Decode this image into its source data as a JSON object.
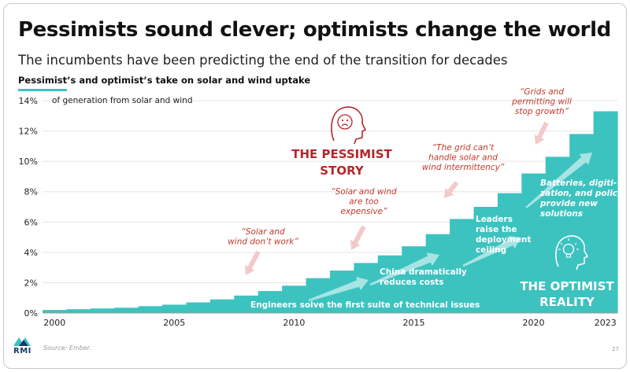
{
  "slide": {
    "title": "Pessimists sound clever; optimists change the world",
    "subtitle": "The incumbents have been predicting the end of the transition for decades",
    "chart_heading": "Pessimist’s and optimist’s take on solar and wind uptake",
    "source": "Source: Ember.",
    "page_number": "27",
    "logo_text": "RMI"
  },
  "colors": {
    "teal": "#3cc3c0",
    "teal_light": "#7fd8d5",
    "pessimist_red": "#b5262b",
    "quote_red": "#c0392b",
    "pink_arrow": "#f3c9c9",
    "white": "#ffffff"
  },
  "chart_data": {
    "type": "bar",
    "ylabel": "of generation from solar and wind",
    "ylim": [
      0,
      14
    ],
    "yticks": [
      "0%",
      "2%",
      "4%",
      "6%",
      "8%",
      "10%",
      "12%",
      "14%"
    ],
    "xticks": [
      "2000",
      "2005",
      "2010",
      "2015",
      "2020",
      "2023"
    ],
    "categories": [
      "2000",
      "2001",
      "2002",
      "2003",
      "2004",
      "2005",
      "2006",
      "2007",
      "2008",
      "2009",
      "2010",
      "2011",
      "2012",
      "2013",
      "2014",
      "2015",
      "2016",
      "2017",
      "2018",
      "2019",
      "2020",
      "2021",
      "2022",
      "2023"
    ],
    "values": [
      0.2,
      0.25,
      0.3,
      0.35,
      0.45,
      0.55,
      0.7,
      0.9,
      1.15,
      1.45,
      1.8,
      2.3,
      2.8,
      3.3,
      3.8,
      4.4,
      5.2,
      6.2,
      7.0,
      7.9,
      9.2,
      10.3,
      11.8,
      13.3
    ],
    "pessimist_label": [
      "THE PESSIMIST",
      "STORY"
    ],
    "optimist_label": [
      "THE OPTIMIST",
      "REALITY"
    ],
    "pessimist_quotes": [
      {
        "lines": [
          "“Solar and",
          "wind don’t work”"
        ]
      },
      {
        "lines": [
          "“Solar and wind",
          "are too",
          "expensive”"
        ]
      },
      {
        "lines": [
          "“The grid can’t",
          "handle solar and",
          "wind intermittency”"
        ]
      },
      {
        "lines": [
          "“Grids and",
          "permitting will",
          "stop growth”"
        ]
      }
    ],
    "optimist_notes": [
      {
        "lines": [
          "Engineers solve the first suite of technical issues"
        ]
      },
      {
        "lines": [
          "China dramatically",
          "reduces costs"
        ]
      },
      {
        "lines": [
          "Leaders",
          "raise the",
          "deployment",
          "ceiling"
        ]
      },
      {
        "lines": [
          "Batteries, digiti-",
          "zation, and policy",
          "provide new",
          "solutions"
        ]
      }
    ]
  }
}
